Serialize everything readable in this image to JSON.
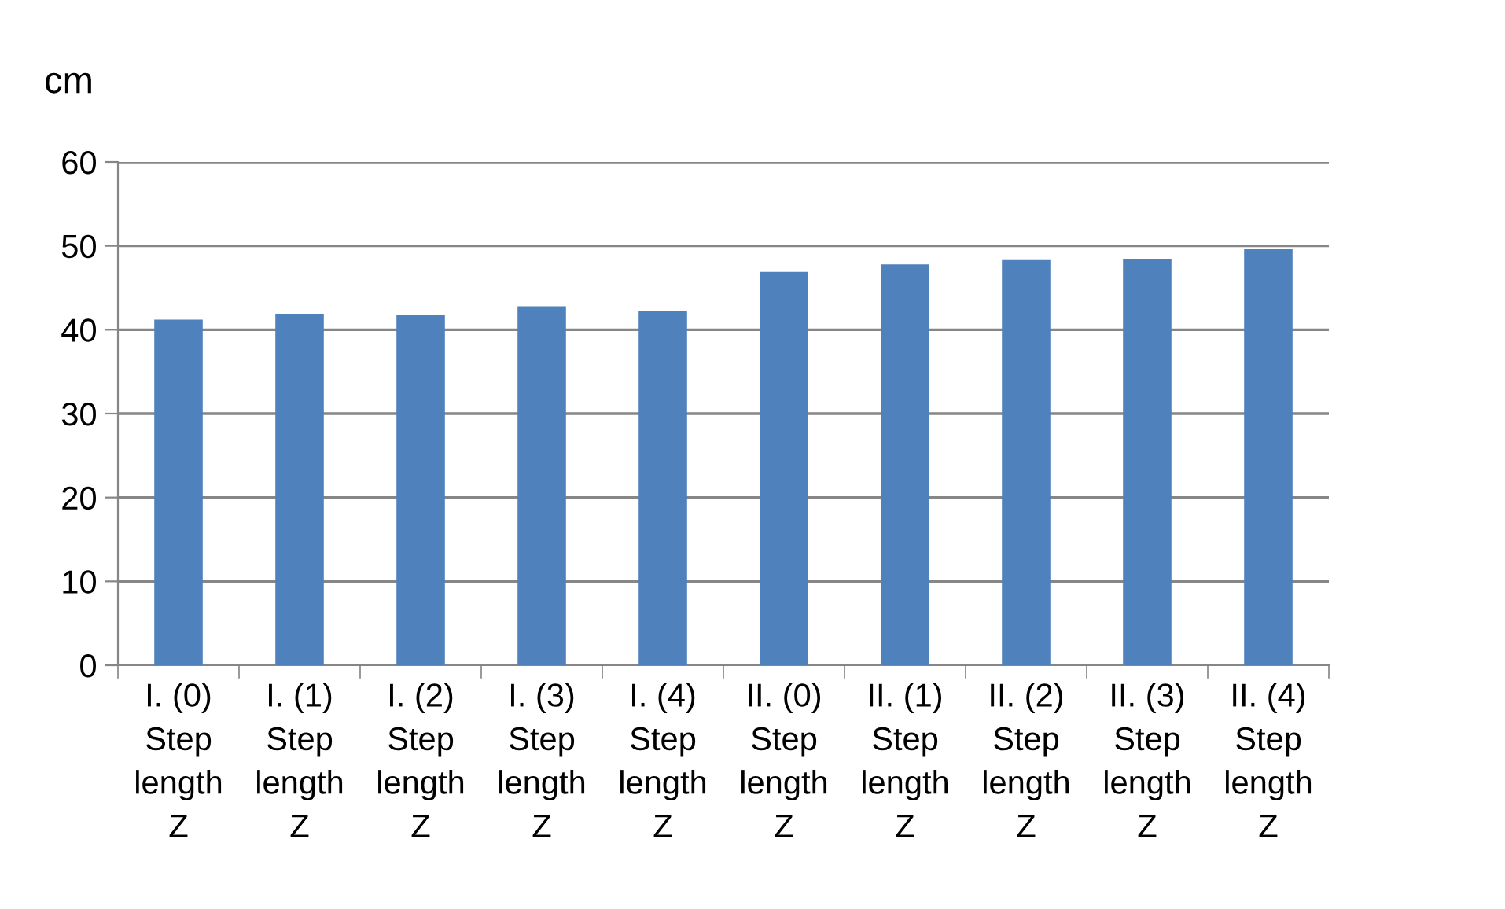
{
  "chart_data": {
    "type": "bar",
    "ylabel": "cm",
    "categories": [
      "I. (0)\nStep\nlength\nZ",
      "I. (1)\nStep\nlength\nZ",
      "I. (2)\nStep\nlength\nZ",
      "I. (3)\nStep\nlength\nZ",
      "I. (4)\nStep\nlength\nZ",
      "II. (0)\nStep\nlength\nZ",
      "II. (1)\nStep\nlength\nZ",
      "II. (2)\nStep\nlength\nZ",
      "II. (3)\nStep\nlength\nZ",
      "II. (4)\nStep\nlength\nZ"
    ],
    "values": [
      41.2,
      41.9,
      41.8,
      42.8,
      42.2,
      46.9,
      47.8,
      48.3,
      48.4,
      49.6
    ],
    "color": "#4f81bd",
    "ylim": [
      0,
      60
    ],
    "yticks": [
      0,
      10,
      20,
      30,
      40,
      50,
      60
    ],
    "grid": "y",
    "legend": false
  }
}
